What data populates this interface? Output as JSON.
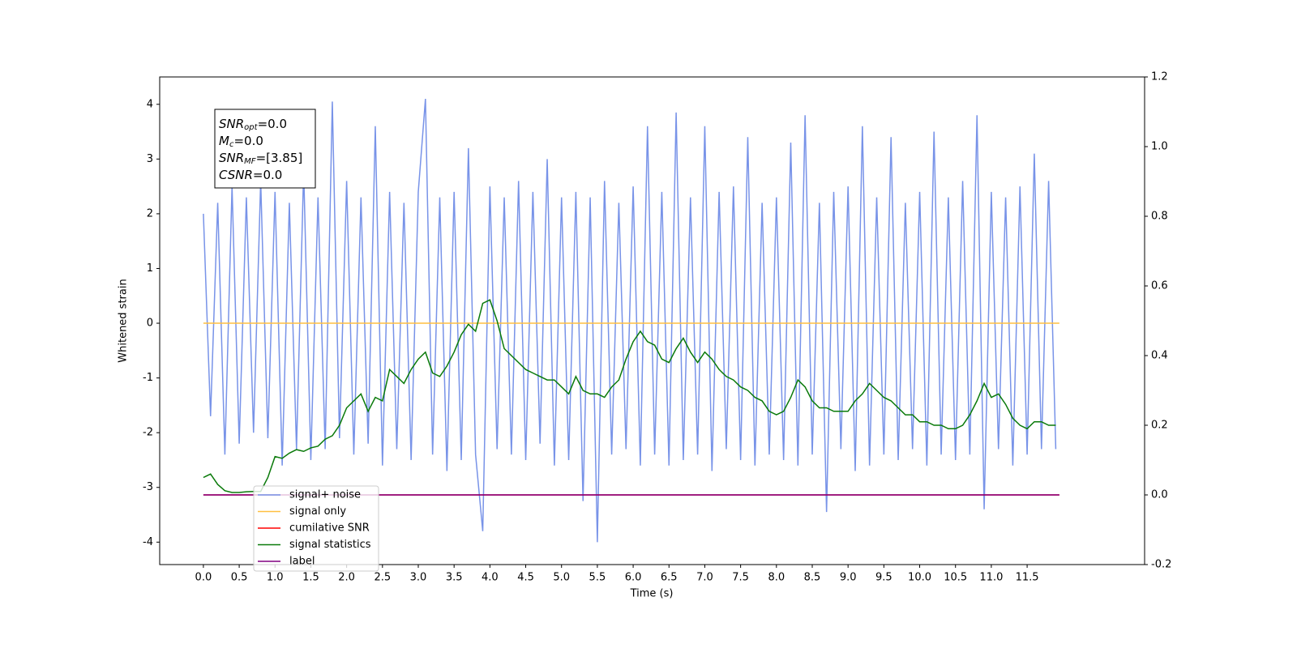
{
  "chart_data": {
    "type": "line",
    "xlabel": "Time (s)",
    "ylabel": "Whitened strain",
    "xlim": [
      -0.61,
      13.14
    ],
    "ylim": [
      -4.41,
      4.5
    ],
    "y2lim": [
      -0.2,
      1.2
    ],
    "xticks": [
      {
        "value": 0,
        "label": "0.0"
      },
      0.5,
      {
        "value": 1,
        "label": "1.0"
      },
      1.5,
      {
        "value": 2,
        "label": "2.0"
      },
      2.5,
      {
        "value": 3,
        "label": "3.0"
      },
      3.5,
      {
        "value": 4,
        "label": "4.0"
      },
      4.5,
      {
        "value": 5,
        "label": "5.0"
      },
      5.5,
      {
        "value": 6,
        "label": "6.0"
      },
      6.5,
      {
        "value": 7,
        "label": "7.0"
      },
      7.5,
      {
        "value": 8,
        "label": "8.0"
      },
      8.5,
      {
        "value": 9,
        "label": "9.0"
      },
      9.5,
      {
        "value": 10,
        "label": "10.0"
      },
      10.5,
      {
        "value": 11,
        "label": "11.0"
      },
      11.5
    ],
    "yticks": [
      -4,
      -3,
      -2,
      -1,
      0,
      1,
      2,
      3,
      4
    ],
    "y2ticks": [
      -0.2,
      {
        "value": 0,
        "label": "0.0"
      },
      0.2,
      0.4,
      0.6,
      0.8,
      {
        "value": 1,
        "label": "1.0"
      },
      1.2
    ],
    "legend": "lower left",
    "annotation": [
      {
        "symbol": "SNR",
        "sub": "opt",
        "text": "=0.0"
      },
      {
        "symbol": "M",
        "sub": "c",
        "text": "=0.0"
      },
      {
        "symbol": "SNR",
        "sub": "MF",
        "text": "=[3.85]"
      },
      {
        "symbol": "CSNR",
        "text": "=0.0"
      }
    ],
    "x": [
      0,
      0.1,
      0.2,
      0.3,
      0.4,
      0.5,
      0.6,
      0.7,
      0.8,
      0.9,
      1,
      1.1,
      1.2,
      1.3,
      1.4,
      1.5,
      1.6,
      1.7,
      1.8,
      1.9,
      2,
      2.1,
      2.2,
      2.3,
      2.4,
      2.5,
      2.6,
      2.7,
      2.8,
      2.9,
      3,
      3.1,
      3.2,
      3.3,
      3.4,
      3.5,
      3.6,
      3.7,
      3.8,
      3.9,
      4,
      4.1,
      4.2,
      4.3,
      4.4,
      4.5,
      4.6,
      4.7,
      4.8,
      4.9,
      5,
      5.1,
      5.2,
      5.3,
      5.4,
      5.5,
      5.6,
      5.7,
      5.8,
      5.9,
      6,
      6.1,
      6.2,
      6.3,
      6.4,
      6.5,
      6.6,
      6.7,
      6.8,
      6.9,
      7,
      7.1,
      7.2,
      7.3,
      7.4,
      7.5,
      7.6,
      7.7,
      7.8,
      7.9,
      8,
      8.1,
      8.2,
      8.3,
      8.4,
      8.5,
      8.6,
      8.7,
      8.8,
      8.9,
      9,
      9.1,
      9.2,
      9.3,
      9.4,
      9.5,
      9.6,
      9.7,
      9.8,
      9.9,
      10,
      10.1,
      10.2,
      10.3,
      10.4,
      10.5,
      10.6,
      10.7,
      10.8,
      10.9,
      11,
      11.1,
      11.2,
      11.3,
      11.4,
      11.5,
      11.6,
      11.7,
      11.8,
      11.9
    ],
    "series": [
      {
        "name": "signal+ noise",
        "color": "#7893e8",
        "values": [
          2.0,
          -1.7,
          2.2,
          -2.4,
          2.5,
          -2.2,
          2.3,
          -2.0,
          2.6,
          -2.1,
          2.4,
          -2.6,
          2.2,
          -2.3,
          2.8,
          -2.5,
          2.3,
          -2.3,
          4.05,
          -2.1,
          2.6,
          -2.4,
          2.3,
          -2.2,
          3.6,
          -2.6,
          2.4,
          -2.3,
          2.2,
          -2.5,
          2.4,
          4.1,
          -2.4,
          2.3,
          -2.7,
          2.4,
          -2.5,
          3.2,
          -2.4,
          -3.8,
          2.5,
          -2.3,
          2.3,
          -2.4,
          2.6,
          -2.5,
          2.4,
          -2.2,
          3.0,
          -2.6,
          2.3,
          -2.5,
          2.4,
          -3.25,
          2.3,
          -4.0,
          2.6,
          -2.4,
          2.2,
          -2.3,
          2.5,
          -2.6,
          3.6,
          -2.4,
          2.4,
          -2.6,
          3.85,
          -2.5,
          2.3,
          -2.4,
          3.6,
          -2.7,
          2.4,
          -2.3,
          2.5,
          -2.5,
          3.4,
          -2.6,
          2.2,
          -2.4,
          2.3,
          -2.5,
          3.3,
          -2.6,
          3.8,
          -2.4,
          2.2,
          -3.45,
          2.4,
          -2.3,
          2.5,
          -2.7,
          3.6,
          -2.6,
          2.3,
          -2.4,
          3.4,
          -2.5,
          2.2,
          -2.3,
          2.4,
          -2.6,
          3.5,
          -2.4,
          2.3,
          -2.5,
          2.6,
          -2.4,
          3.8,
          -3.4,
          2.4,
          -2.3,
          2.3,
          -2.6,
          2.5,
          -2.4,
          3.1,
          -2.3,
          2.6,
          -2.3
        ]
      },
      {
        "name": "signal only",
        "color": "#ffbf40",
        "x": [
          0,
          11.95
        ],
        "values": [
          0,
          0
        ]
      },
      {
        "name": "cumilative SNR",
        "color": "#ff0000",
        "axis": "y2",
        "x": [
          0,
          11.95
        ],
        "values": [
          0,
          0
        ]
      },
      {
        "name": "signal statistics",
        "color": "#0a7a0a",
        "axis": "y2",
        "values": [
          0.05,
          0.06,
          0.03,
          0.012,
          0.007,
          0.007,
          0.009,
          0.01,
          0.01,
          0.05,
          0.11,
          0.105,
          0.12,
          0.13,
          0.125,
          0.135,
          0.14,
          0.16,
          0.17,
          0.2,
          0.25,
          0.27,
          0.29,
          0.24,
          0.28,
          0.27,
          0.36,
          0.34,
          0.32,
          0.36,
          0.39,
          0.41,
          0.35,
          0.34,
          0.37,
          0.41,
          0.46,
          0.49,
          0.47,
          0.55,
          0.56,
          0.5,
          0.42,
          0.4,
          0.38,
          0.36,
          0.35,
          0.34,
          0.33,
          0.33,
          0.31,
          0.29,
          0.34,
          0.3,
          0.29,
          0.29,
          0.28,
          0.31,
          0.33,
          0.39,
          0.44,
          0.47,
          0.44,
          0.43,
          0.39,
          0.38,
          0.42,
          0.45,
          0.41,
          0.38,
          0.41,
          0.39,
          0.36,
          0.34,
          0.33,
          0.31,
          0.3,
          0.28,
          0.27,
          0.24,
          0.23,
          0.24,
          0.28,
          0.33,
          0.31,
          0.27,
          0.25,
          0.25,
          0.24,
          0.24,
          0.24,
          0.27,
          0.29,
          0.32,
          0.3,
          0.28,
          0.27,
          0.25,
          0.23,
          0.23,
          0.21,
          0.21,
          0.2,
          0.2,
          0.19,
          0.19,
          0.2,
          0.23,
          0.27,
          0.32,
          0.28,
          0.29,
          0.26,
          0.22,
          0.2,
          0.19,
          0.21,
          0.21,
          0.2,
          0.2
        ]
      },
      {
        "name": "label",
        "color": "#800080",
        "axis": "y2",
        "x": [
          0,
          11.95
        ],
        "values": [
          0,
          0
        ]
      }
    ]
  }
}
